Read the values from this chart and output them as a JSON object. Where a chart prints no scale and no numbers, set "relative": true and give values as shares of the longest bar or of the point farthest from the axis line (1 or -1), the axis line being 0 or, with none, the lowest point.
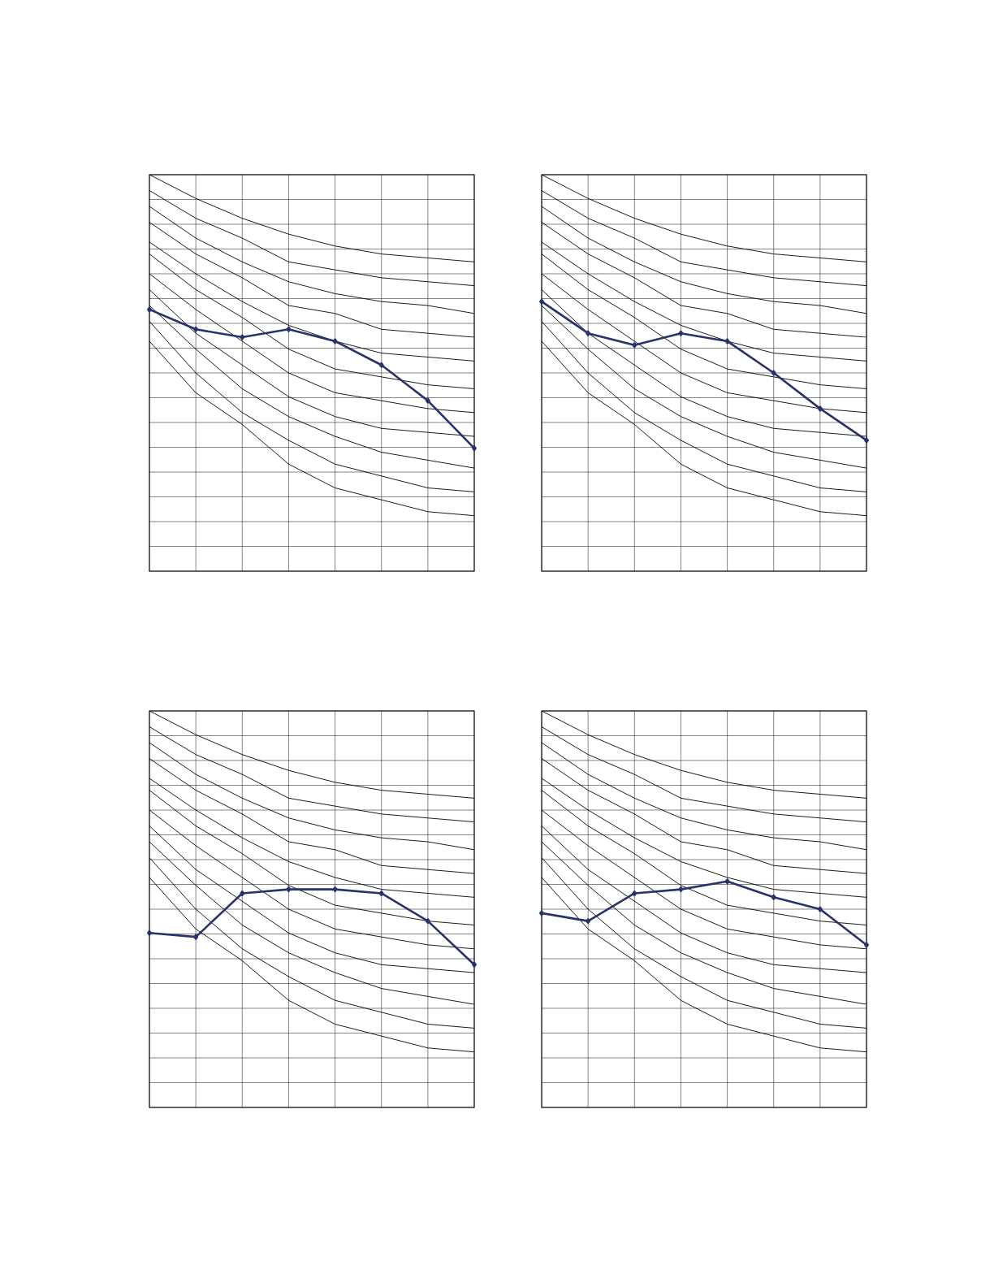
{
  "chart_data": [
    {
      "type": "line",
      "relative": true,
      "grid": true,
      "categories": [
        null,
        null,
        null,
        null,
        null,
        null,
        null,
        null
      ],
      "series": [
        {
          "color": "#000000",
          "values": [
            1.0,
            0.94,
            0.89,
            0.85,
            0.82,
            0.8,
            0.79,
            0.78
          ]
        },
        {
          "color": "#000000",
          "values": [
            0.96,
            0.89,
            0.84,
            0.78,
            0.76,
            0.74,
            0.73,
            0.72
          ]
        },
        {
          "color": "#000000",
          "values": [
            0.92,
            0.84,
            0.78,
            0.73,
            0.7,
            0.68,
            0.67,
            0.65
          ]
        },
        {
          "color": "#000000",
          "values": [
            0.88,
            0.8,
            0.74,
            0.67,
            0.65,
            0.61,
            0.6,
            0.59
          ]
        },
        {
          "color": "#000000",
          "values": [
            0.83,
            0.75,
            0.68,
            0.62,
            0.58,
            0.55,
            0.54,
            0.53
          ]
        },
        {
          "color": "#000000",
          "values": [
            0.8,
            0.71,
            0.64,
            0.56,
            0.51,
            0.49,
            0.47,
            0.46
          ]
        },
        {
          "color": "#000000",
          "values": [
            0.75,
            0.66,
            0.58,
            0.5,
            0.45,
            0.43,
            0.41,
            0.4
          ]
        },
        {
          "color": "#000000",
          "values": [
            0.71,
            0.6,
            0.52,
            0.44,
            0.39,
            0.36,
            0.35,
            0.34
          ]
        },
        {
          "color": "#000000",
          "values": [
            0.67,
            0.56,
            0.46,
            0.39,
            0.34,
            0.3,
            0.28,
            0.26
          ]
        },
        {
          "color": "#000000",
          "values": [
            0.63,
            0.5,
            0.4,
            0.33,
            0.27,
            0.24,
            0.21,
            0.2
          ]
        },
        {
          "color": "#000000",
          "values": [
            0.58,
            0.45,
            0.37,
            0.27,
            0.21,
            0.18,
            0.15,
            0.14
          ]
        },
        {
          "color": "#27336a",
          "marker": "diamond",
          "values": [
            0.66,
            0.61,
            0.59,
            0.61,
            0.58,
            0.52,
            0.43,
            0.31
          ]
        }
      ]
    },
    {
      "type": "line",
      "relative": true,
      "grid": true,
      "categories": [
        null,
        null,
        null,
        null,
        null,
        null,
        null,
        null
      ],
      "series": [
        {
          "color": "#000000",
          "values": [
            1.0,
            0.94,
            0.89,
            0.85,
            0.82,
            0.8,
            0.79,
            0.78
          ]
        },
        {
          "color": "#000000",
          "values": [
            0.96,
            0.89,
            0.84,
            0.78,
            0.76,
            0.74,
            0.73,
            0.72
          ]
        },
        {
          "color": "#000000",
          "values": [
            0.92,
            0.84,
            0.78,
            0.73,
            0.7,
            0.68,
            0.67,
            0.65
          ]
        },
        {
          "color": "#000000",
          "values": [
            0.88,
            0.8,
            0.74,
            0.67,
            0.65,
            0.61,
            0.6,
            0.59
          ]
        },
        {
          "color": "#000000",
          "values": [
            0.83,
            0.75,
            0.68,
            0.62,
            0.58,
            0.55,
            0.54,
            0.53
          ]
        },
        {
          "color": "#000000",
          "values": [
            0.8,
            0.71,
            0.64,
            0.56,
            0.51,
            0.49,
            0.47,
            0.46
          ]
        },
        {
          "color": "#000000",
          "values": [
            0.75,
            0.66,
            0.58,
            0.5,
            0.45,
            0.43,
            0.41,
            0.4
          ]
        },
        {
          "color": "#000000",
          "values": [
            0.71,
            0.6,
            0.52,
            0.44,
            0.39,
            0.36,
            0.35,
            0.34
          ]
        },
        {
          "color": "#000000",
          "values": [
            0.67,
            0.56,
            0.46,
            0.39,
            0.34,
            0.3,
            0.28,
            0.26
          ]
        },
        {
          "color": "#000000",
          "values": [
            0.63,
            0.5,
            0.4,
            0.33,
            0.27,
            0.24,
            0.21,
            0.2
          ]
        },
        {
          "color": "#000000",
          "values": [
            0.58,
            0.45,
            0.37,
            0.27,
            0.21,
            0.18,
            0.15,
            0.14
          ]
        },
        {
          "color": "#27336a",
          "marker": "diamond",
          "values": [
            0.68,
            0.6,
            0.57,
            0.6,
            0.58,
            0.5,
            0.41,
            0.33
          ]
        }
      ]
    },
    {
      "type": "line",
      "relative": true,
      "grid": true,
      "categories": [
        null,
        null,
        null,
        null,
        null,
        null,
        null,
        null
      ],
      "series": [
        {
          "color": "#000000",
          "values": [
            1.0,
            0.94,
            0.89,
            0.85,
            0.82,
            0.8,
            0.79,
            0.78
          ]
        },
        {
          "color": "#000000",
          "values": [
            0.96,
            0.89,
            0.84,
            0.78,
            0.76,
            0.74,
            0.73,
            0.72
          ]
        },
        {
          "color": "#000000",
          "values": [
            0.92,
            0.84,
            0.78,
            0.73,
            0.7,
            0.68,
            0.67,
            0.65
          ]
        },
        {
          "color": "#000000",
          "values": [
            0.88,
            0.8,
            0.74,
            0.67,
            0.65,
            0.61,
            0.6,
            0.59
          ]
        },
        {
          "color": "#000000",
          "values": [
            0.83,
            0.75,
            0.68,
            0.62,
            0.58,
            0.55,
            0.54,
            0.53
          ]
        },
        {
          "color": "#000000",
          "values": [
            0.8,
            0.71,
            0.64,
            0.56,
            0.51,
            0.49,
            0.47,
            0.46
          ]
        },
        {
          "color": "#000000",
          "values": [
            0.75,
            0.66,
            0.58,
            0.5,
            0.45,
            0.43,
            0.41,
            0.4
          ]
        },
        {
          "color": "#000000",
          "values": [
            0.71,
            0.6,
            0.52,
            0.44,
            0.39,
            0.36,
            0.35,
            0.34
          ]
        },
        {
          "color": "#000000",
          "values": [
            0.67,
            0.56,
            0.46,
            0.39,
            0.34,
            0.3,
            0.28,
            0.26
          ]
        },
        {
          "color": "#000000",
          "values": [
            0.63,
            0.5,
            0.4,
            0.33,
            0.27,
            0.24,
            0.21,
            0.2
          ]
        },
        {
          "color": "#000000",
          "values": [
            0.58,
            0.45,
            0.37,
            0.27,
            0.21,
            0.18,
            0.15,
            0.14
          ]
        },
        {
          "color": "#27336a",
          "marker": "diamond",
          "values": [
            0.44,
            0.43,
            0.54,
            0.55,
            0.55,
            0.54,
            0.47,
            0.36
          ]
        }
      ]
    },
    {
      "type": "line",
      "relative": true,
      "grid": true,
      "categories": [
        null,
        null,
        null,
        null,
        null,
        null,
        null,
        null
      ],
      "series": [
        {
          "color": "#000000",
          "values": [
            1.0,
            0.94,
            0.89,
            0.85,
            0.82,
            0.8,
            0.79,
            0.78
          ]
        },
        {
          "color": "#000000",
          "values": [
            0.96,
            0.89,
            0.84,
            0.78,
            0.76,
            0.74,
            0.73,
            0.72
          ]
        },
        {
          "color": "#000000",
          "values": [
            0.92,
            0.84,
            0.78,
            0.73,
            0.7,
            0.68,
            0.67,
            0.65
          ]
        },
        {
          "color": "#000000",
          "values": [
            0.88,
            0.8,
            0.74,
            0.67,
            0.65,
            0.61,
            0.6,
            0.59
          ]
        },
        {
          "color": "#000000",
          "values": [
            0.83,
            0.75,
            0.68,
            0.62,
            0.58,
            0.55,
            0.54,
            0.53
          ]
        },
        {
          "color": "#000000",
          "values": [
            0.8,
            0.71,
            0.64,
            0.56,
            0.51,
            0.49,
            0.47,
            0.46
          ]
        },
        {
          "color": "#000000",
          "values": [
            0.75,
            0.66,
            0.58,
            0.5,
            0.45,
            0.43,
            0.41,
            0.4
          ]
        },
        {
          "color": "#000000",
          "values": [
            0.71,
            0.6,
            0.52,
            0.44,
            0.39,
            0.36,
            0.35,
            0.34
          ]
        },
        {
          "color": "#000000",
          "values": [
            0.67,
            0.56,
            0.46,
            0.39,
            0.34,
            0.3,
            0.28,
            0.26
          ]
        },
        {
          "color": "#000000",
          "values": [
            0.63,
            0.5,
            0.4,
            0.33,
            0.27,
            0.24,
            0.21,
            0.2
          ]
        },
        {
          "color": "#000000",
          "values": [
            0.58,
            0.45,
            0.37,
            0.27,
            0.21,
            0.18,
            0.15,
            0.14
          ]
        },
        {
          "color": "#27336a",
          "marker": "diamond",
          "values": [
            0.49,
            0.47,
            0.54,
            0.55,
            0.57,
            0.53,
            0.5,
            0.41
          ]
        }
      ]
    }
  ]
}
